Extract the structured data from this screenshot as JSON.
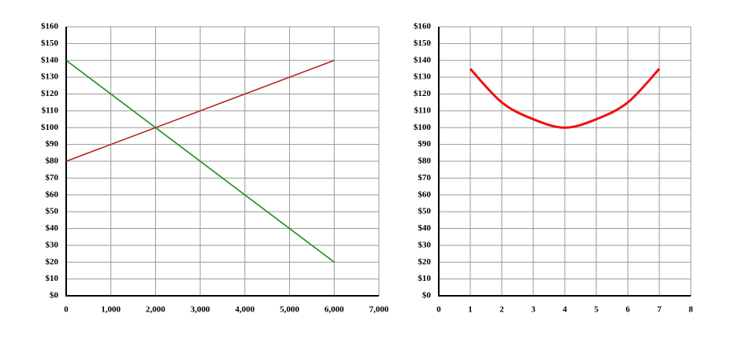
{
  "chart_data": [
    {
      "type": "line",
      "x": [
        0,
        6000
      ],
      "series": [
        {
          "color": "#b22222",
          "values": [
            80,
            140
          ]
        },
        {
          "color": "#1a8c1a",
          "values": [
            140,
            20
          ]
        }
      ],
      "xlim": [
        0,
        7000
      ],
      "xticks": [
        0,
        {
          "value": 1000,
          "label": "1,000"
        },
        {
          "value": 2000,
          "label": "2,000"
        },
        {
          "value": 3000,
          "label": "3,000"
        },
        {
          "value": 4000,
          "label": "4,000"
        },
        {
          "value": 5000,
          "label": "5,000"
        },
        {
          "value": 6000,
          "label": "6,000"
        },
        {
          "value": 7000,
          "label": "7,000"
        }
      ],
      "ylim": [
        0,
        160
      ],
      "yticks": [
        {
          "value": 0,
          "label": "$0"
        },
        {
          "value": 10,
          "label": "$10"
        },
        {
          "value": 20,
          "label": "$20"
        },
        {
          "value": 30,
          "label": "$30"
        },
        {
          "value": 40,
          "label": "$40"
        },
        {
          "value": 50,
          "label": "$50"
        },
        {
          "value": 60,
          "label": "$60"
        },
        {
          "value": 70,
          "label": "$70"
        },
        {
          "value": 80,
          "label": "$80"
        },
        {
          "value": 90,
          "label": "$90"
        },
        {
          "value": 100,
          "label": "$100"
        },
        {
          "value": 110,
          "label": "$110"
        },
        {
          "value": 120,
          "label": "$120"
        },
        {
          "value": 130,
          "label": "$130"
        },
        {
          "value": 140,
          "label": "$140"
        },
        {
          "value": 150,
          "label": "$150"
        },
        {
          "value": 160,
          "label": "$160"
        }
      ],
      "grid": true,
      "smooth": false
    },
    {
      "type": "line",
      "x": [
        1,
        2,
        3,
        4,
        5,
        6,
        7
      ],
      "series": [
        {
          "color": "#ee1111",
          "values": [
            135,
            115,
            105,
            100,
            105,
            115,
            135
          ]
        }
      ],
      "xlim": [
        0,
        8
      ],
      "xticks": [
        0,
        1,
        2,
        3,
        4,
        5,
        6,
        7,
        8
      ],
      "ylim": [
        0,
        160
      ],
      "yticks": [
        {
          "value": 0,
          "label": "$0"
        },
        {
          "value": 10,
          "label": "$10"
        },
        {
          "value": 20,
          "label": "$20"
        },
        {
          "value": 30,
          "label": "$30"
        },
        {
          "value": 40,
          "label": "$40"
        },
        {
          "value": 50,
          "label": "$50"
        },
        {
          "value": 60,
          "label": "$60"
        },
        {
          "value": 70,
          "label": "$70"
        },
        {
          "value": 80,
          "label": "$80"
        },
        {
          "value": 90,
          "label": "$90"
        },
        {
          "value": 100,
          "label": "$100"
        },
        {
          "value": 110,
          "label": "$110"
        },
        {
          "value": 120,
          "label": "$120"
        },
        {
          "value": 130,
          "label": "$130"
        },
        {
          "value": 140,
          "label": "$140"
        },
        {
          "value": 150,
          "label": "$150"
        },
        {
          "value": 160,
          "label": "$160"
        }
      ],
      "grid": true,
      "smooth": true
    }
  ]
}
